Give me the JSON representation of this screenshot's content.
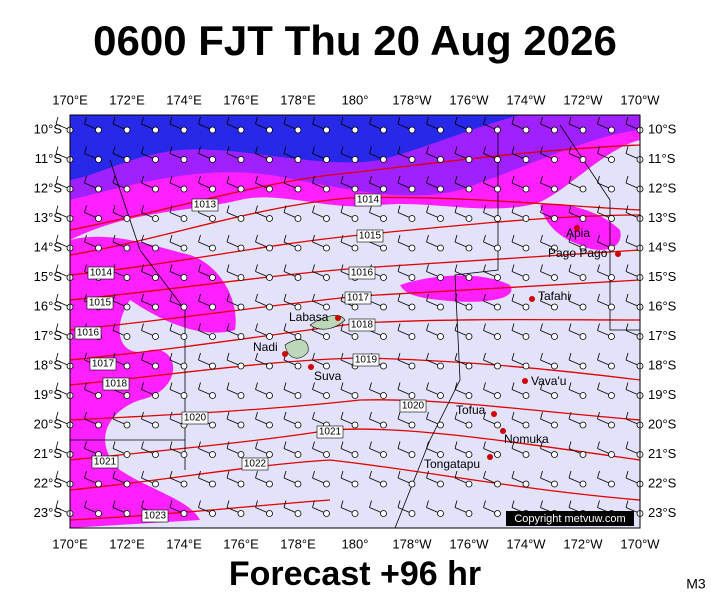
{
  "title": "0600 FJT Thu 20 Aug 2026",
  "footer": "Forecast +96 hr",
  "model": "M3",
  "copyright": "Copyright metvuw.com",
  "longitudes": [
    "170°E",
    "172°E",
    "174°E",
    "176°E",
    "178°E",
    "180°",
    "178°W",
    "176°W",
    "174°W",
    "172°W",
    "170°W"
  ],
  "latitudes": [
    "10°S",
    "11°S",
    "12°S",
    "13°S",
    "14°S",
    "15°S",
    "16°S",
    "17°S",
    "18°S",
    "19°S",
    "20°S",
    "21°S",
    "22°S",
    "23°S"
  ],
  "places": [
    "Apia",
    "Pago Pago",
    "Tafahi",
    "Labasa",
    "Nadi",
    "Suva",
    "Vava'u",
    "Tofua",
    "Nomuka",
    "Tongatapu"
  ],
  "isobars": [
    "1013",
    "1014",
    "1015",
    "1016",
    "1017",
    "1018",
    "1019",
    "1020",
    "1021",
    "1022",
    "1014",
    "1015",
    "1016",
    "1017",
    "1018",
    "1020",
    "1021",
    "1023"
  ]
}
